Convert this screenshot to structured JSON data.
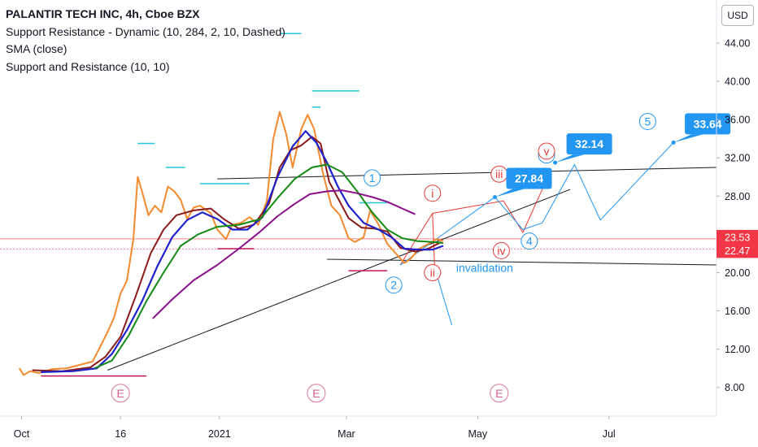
{
  "legend": {
    "title": "PALANTIR TECH INC, 4h, Cboe BZX",
    "line1": "Support Resistance - Dynamic (10, 284, 2, 10, Dashed)",
    "line2": "SMA (close)",
    "line3": "Support and Resistance (10, 10)"
  },
  "currency_button": "USD",
  "colors": {
    "price": "#f28a2e",
    "sma_fast": "#8b1a1a",
    "sma_blue": "#1e22c8",
    "sma_green": "#138a13",
    "sma_purple": "#8a0f8a",
    "resistance": "#26c6da",
    "support": "#c2185b",
    "trendline": "#131722",
    "wave_blue": "#2196f3",
    "wave_red": "#e53935",
    "price_tag": "#f23645",
    "callout": "#2196f3"
  },
  "chart_data": {
    "type": "line",
    "x_ticks": [
      {
        "label": "Oct",
        "date": "2020-10-01"
      },
      {
        "label": "16",
        "date": "2020-11-16"
      },
      {
        "label": "2021",
        "date": "2021-01-01"
      },
      {
        "label": "Mar",
        "date": "2021-03-01"
      },
      {
        "label": "May",
        "date": "2021-05-01"
      },
      {
        "label": "Jul",
        "date": "2021-07-01"
      }
    ],
    "y_ticks": [
      8,
      12,
      16,
      20,
      24,
      28,
      32,
      36,
      40,
      44
    ],
    "y_tick_labels": [
      "8.00",
      "12.00",
      "16.00",
      "20.00",
      "24.00",
      "28.00",
      "32.00",
      "36.00",
      "40.00",
      "44.00"
    ],
    "xlim": [
      "2020-09-21",
      "2021-08-20"
    ],
    "ylim": [
      5.0,
      48.5
    ],
    "grid": false,
    "price_labels": [
      {
        "text": "23.53",
        "value": 23.53
      },
      {
        "text": "22.47",
        "value": 22.47
      }
    ],
    "series": [
      {
        "color_key": "price",
        "points": [
          [
            "2020-09-30",
            10.0
          ],
          [
            "2020-10-02",
            9.3
          ],
          [
            "2020-10-05",
            9.7
          ],
          [
            "2020-10-09",
            9.5
          ],
          [
            "2020-10-15",
            9.9
          ],
          [
            "2020-10-22",
            10.0
          ],
          [
            "2020-10-29",
            10.4
          ],
          [
            "2020-11-03",
            10.7
          ],
          [
            "2020-11-06",
            12.0
          ],
          [
            "2020-11-10",
            13.8
          ],
          [
            "2020-11-13",
            15.3
          ],
          [
            "2020-11-16",
            17.8
          ],
          [
            "2020-11-19",
            19.2
          ],
          [
            "2020-11-22",
            23.5
          ],
          [
            "2020-11-24",
            30.0
          ],
          [
            "2020-11-26",
            28.5
          ],
          [
            "2020-11-29",
            26.0
          ],
          [
            "2020-12-02",
            27.0
          ],
          [
            "2020-12-05",
            26.3
          ],
          [
            "2020-12-08",
            29.0
          ],
          [
            "2020-12-11",
            28.5
          ],
          [
            "2020-12-14",
            27.6
          ],
          [
            "2020-12-17",
            25.6
          ],
          [
            "2020-12-20",
            26.8
          ],
          [
            "2020-12-23",
            27.0
          ],
          [
            "2020-12-28",
            26.2
          ],
          [
            "2020-12-31",
            24.5
          ],
          [
            "2021-01-04",
            23.5
          ],
          [
            "2021-01-07",
            25.0
          ],
          [
            "2021-01-11",
            25.2
          ],
          [
            "2021-01-15",
            25.8
          ],
          [
            "2021-01-19",
            25.0
          ],
          [
            "2021-01-23",
            27.5
          ],
          [
            "2021-01-26",
            34.0
          ],
          [
            "2021-01-29",
            36.8
          ],
          [
            "2021-02-01",
            34.5
          ],
          [
            "2021-02-04",
            31.0
          ],
          [
            "2021-02-08",
            35.0
          ],
          [
            "2021-02-11",
            36.5
          ],
          [
            "2021-02-14",
            35.0
          ],
          [
            "2021-02-18",
            30.5
          ],
          [
            "2021-02-22",
            27.0
          ],
          [
            "2021-02-26",
            26.0
          ],
          [
            "2021-03-02",
            23.6
          ],
          [
            "2021-03-05",
            23.2
          ],
          [
            "2021-03-09",
            23.7
          ],
          [
            "2021-03-12",
            26.5
          ],
          [
            "2021-03-16",
            25.0
          ],
          [
            "2021-03-20",
            23.0
          ],
          [
            "2021-03-24",
            22.0
          ],
          [
            "2021-03-28",
            21.0
          ],
          [
            "2021-03-31",
            21.5
          ],
          [
            "2021-04-04",
            22.5
          ],
          [
            "2021-04-08",
            23.0
          ],
          [
            "2021-04-12",
            23.5
          ],
          [
            "2021-04-15",
            23.3
          ]
        ]
      },
      {
        "color_key": "sma_fast",
        "points": [
          [
            "2020-10-06",
            9.8
          ],
          [
            "2020-10-20",
            9.7
          ],
          [
            "2020-11-02",
            10.1
          ],
          [
            "2020-11-09",
            11.2
          ],
          [
            "2020-11-16",
            13.3
          ],
          [
            "2020-11-23",
            17.5
          ],
          [
            "2020-11-30",
            22.0
          ],
          [
            "2020-12-06",
            24.5
          ],
          [
            "2020-12-12",
            26.0
          ],
          [
            "2020-12-20",
            26.5
          ],
          [
            "2020-12-28",
            26.7
          ],
          [
            "2021-01-03",
            25.6
          ],
          [
            "2021-01-10",
            24.6
          ],
          [
            "2021-01-17",
            25.0
          ],
          [
            "2021-01-24",
            27.2
          ],
          [
            "2021-01-29",
            31.0
          ],
          [
            "2021-02-03",
            32.8
          ],
          [
            "2021-02-08",
            33.3
          ],
          [
            "2021-02-13",
            34.2
          ],
          [
            "2021-02-17",
            33.5
          ],
          [
            "2021-02-21",
            29.5
          ],
          [
            "2021-02-25",
            27.8
          ],
          [
            "2021-03-02",
            25.7
          ],
          [
            "2021-03-08",
            24.7
          ],
          [
            "2021-03-14",
            24.6
          ],
          [
            "2021-03-20",
            24.3
          ],
          [
            "2021-03-26",
            22.6
          ],
          [
            "2021-04-02",
            22.2
          ],
          [
            "2021-04-08",
            22.5
          ],
          [
            "2021-04-14",
            23.2
          ]
        ]
      },
      {
        "color_key": "sma_blue",
        "points": [
          [
            "2020-10-10",
            9.6
          ],
          [
            "2020-10-25",
            9.7
          ],
          [
            "2020-11-05",
            10.0
          ],
          [
            "2020-11-12",
            11.5
          ],
          [
            "2020-11-19",
            14.0
          ],
          [
            "2020-11-26",
            17.0
          ],
          [
            "2020-12-03",
            20.6
          ],
          [
            "2020-12-10",
            23.7
          ],
          [
            "2020-12-17",
            25.5
          ],
          [
            "2020-12-24",
            26.3
          ],
          [
            "2020-12-31",
            25.6
          ],
          [
            "2021-01-07",
            24.5
          ],
          [
            "2021-01-14",
            24.5
          ],
          [
            "2021-01-21",
            25.8
          ],
          [
            "2021-01-28",
            30.0
          ],
          [
            "2021-02-04",
            33.2
          ],
          [
            "2021-02-10",
            34.8
          ],
          [
            "2021-02-15",
            33.6
          ],
          [
            "2021-02-20",
            31.5
          ],
          [
            "2021-02-25",
            29.0
          ],
          [
            "2021-03-02",
            27.0
          ],
          [
            "2021-03-09",
            25.2
          ],
          [
            "2021-03-16",
            24.5
          ],
          [
            "2021-03-22",
            23.7
          ],
          [
            "2021-03-28",
            22.5
          ],
          [
            "2021-04-04",
            22.4
          ],
          [
            "2021-04-10",
            22.4
          ],
          [
            "2021-04-15",
            22.8
          ]
        ]
      },
      {
        "color_key": "sma_green",
        "points": [
          [
            "2020-11-04",
            10.0
          ],
          [
            "2020-11-12",
            10.8
          ],
          [
            "2020-11-20",
            13.5
          ],
          [
            "2020-11-28",
            17.0
          ],
          [
            "2020-12-06",
            20.0
          ],
          [
            "2020-12-14",
            22.8
          ],
          [
            "2020-12-22",
            24.0
          ],
          [
            "2020-12-31",
            24.8
          ],
          [
            "2021-01-10",
            25.0
          ],
          [
            "2021-01-20",
            25.6
          ],
          [
            "2021-01-28",
            27.8
          ],
          [
            "2021-02-05",
            29.8
          ],
          [
            "2021-02-13",
            31.0
          ],
          [
            "2021-02-20",
            31.3
          ],
          [
            "2021-02-27",
            30.5
          ],
          [
            "2021-03-06",
            28.5
          ],
          [
            "2021-03-13",
            26.3
          ],
          [
            "2021-03-20",
            24.5
          ],
          [
            "2021-03-27",
            23.6
          ],
          [
            "2021-04-03",
            23.3
          ],
          [
            "2021-04-10",
            23.2
          ],
          [
            "2021-04-15",
            23.1
          ]
        ]
      },
      {
        "color_key": "sma_purple",
        "points": [
          [
            "2020-12-01",
            15.2
          ],
          [
            "2020-12-10",
            17.2
          ],
          [
            "2020-12-20",
            19.2
          ],
          [
            "2020-12-31",
            20.8
          ],
          [
            "2021-01-10",
            22.5
          ],
          [
            "2021-01-20",
            24.3
          ],
          [
            "2021-01-28",
            25.9
          ],
          [
            "2021-02-05",
            27.2
          ],
          [
            "2021-02-12",
            28.2
          ],
          [
            "2021-02-20",
            28.5
          ],
          [
            "2021-02-27",
            28.6
          ],
          [
            "2021-03-06",
            28.3
          ],
          [
            "2021-03-13",
            27.9
          ],
          [
            "2021-03-20",
            27.4
          ],
          [
            "2021-03-27",
            26.7
          ],
          [
            "2021-04-02",
            26.1
          ]
        ]
      }
    ],
    "resistance_segments": [
      {
        "from": "2020-11-24",
        "to": "2020-12-02",
        "value": 33.5
      },
      {
        "from": "2020-12-07",
        "to": "2020-12-16",
        "value": 31.0
      },
      {
        "from": "2020-12-23",
        "to": "2021-01-15",
        "value": 29.3
      },
      {
        "from": "2021-01-29",
        "to": "2021-02-08",
        "value": 45.0
      },
      {
        "from": "2021-02-13",
        "to": "2021-03-07",
        "value": 39.0
      },
      {
        "from": "2021-02-13",
        "to": "2021-02-17",
        "value": 37.3
      },
      {
        "from": "2021-03-07",
        "to": "2021-03-20",
        "value": 27.3
      }
    ],
    "support_segments": [
      {
        "from": "2020-10-10",
        "to": "2020-11-28",
        "value": 9.2
      },
      {
        "from": "2020-12-31",
        "to": "2021-01-17",
        "value": 22.5
      },
      {
        "from": "2021-03-02",
        "to": "2021-03-20",
        "value": 20.2
      }
    ],
    "trend_lines": [
      {
        "from": [
          "2020-11-10",
          9.8
        ],
        "to": [
          "2021-06-13",
          28.7
        ]
      },
      {
        "from": [
          "2020-12-31",
          29.8
        ],
        "to": [
          "2021-08-20",
          31.0
        ]
      },
      {
        "from": [
          "2021-02-20",
          21.4
        ],
        "to": [
          "2021-08-20",
          20.8
        ]
      }
    ],
    "projection_red": [
      [
        "2021-03-26",
        20.8
      ],
      [
        "2021-04-10",
        26.2
      ],
      [
        "2021-05-13",
        27.5
      ],
      [
        "2021-05-22",
        24.2
      ],
      [
        "2021-06-03",
        30.2
      ]
    ],
    "projection_blue": [
      [
        "2021-03-26",
        20.8
      ],
      [
        "2021-05-09",
        27.9
      ],
      [
        "2021-05-22",
        24.5
      ],
      [
        "2021-05-31",
        25.2
      ],
      [
        "2021-06-15",
        31.3
      ],
      [
        "2021-06-27",
        25.5
      ],
      [
        "2021-07-31",
        33.6
      ]
    ],
    "projection_blue_down": [
      [
        "2021-04-11",
        20.5
      ],
      [
        "2021-04-19",
        14.5
      ]
    ],
    "projection_red_down": [
      [
        "2021-04-10",
        26.2
      ],
      [
        "2021-04-11",
        20.5
      ]
    ],
    "wave_labels": [
      {
        "text": "1",
        "x": "2021-03-13",
        "y": 29.9,
        "style": "blue"
      },
      {
        "text": "2",
        "x": "2021-03-23",
        "y": 18.7,
        "style": "blue"
      },
      {
        "text": "3",
        "x": "2021-06-02",
        "y": 32.3,
        "style": "blue"
      },
      {
        "text": "4",
        "x": "2021-05-25",
        "y": 23.3,
        "style": "blue"
      },
      {
        "text": "5",
        "x": "2021-07-19",
        "y": 35.8,
        "style": "blue"
      },
      {
        "text": "i",
        "x": "2021-04-10",
        "y": 28.3,
        "style": "red"
      },
      {
        "text": "ii",
        "x": "2021-04-10",
        "y": 20.0,
        "style": "red"
      },
      {
        "text": "iii",
        "x": "2021-05-11",
        "y": 30.3,
        "style": "red"
      },
      {
        "text": "iv",
        "x": "2021-05-12",
        "y": 22.3,
        "style": "red"
      },
      {
        "text": "v",
        "x": "2021-06-02",
        "y": 32.7,
        "style": "red"
      },
      {
        "text": "E",
        "x": "2020-11-16",
        "y": 7.4,
        "style": "earnings"
      },
      {
        "text": "E",
        "x": "2021-02-15",
        "y": 7.4,
        "style": "earnings"
      },
      {
        "text": "E",
        "x": "2021-05-11",
        "y": 7.4,
        "style": "earnings"
      }
    ],
    "callouts": [
      {
        "text": "27.84",
        "x": "2021-05-09",
        "y": 27.9
      },
      {
        "text": "32.14",
        "x": "2021-06-06",
        "y": 31.5
      },
      {
        "text": "33.64",
        "x": "2021-07-31",
        "y": 33.6
      }
    ],
    "annotation": {
      "text": "invalidation",
      "x": "2021-04-21",
      "y": 20.1
    }
  }
}
